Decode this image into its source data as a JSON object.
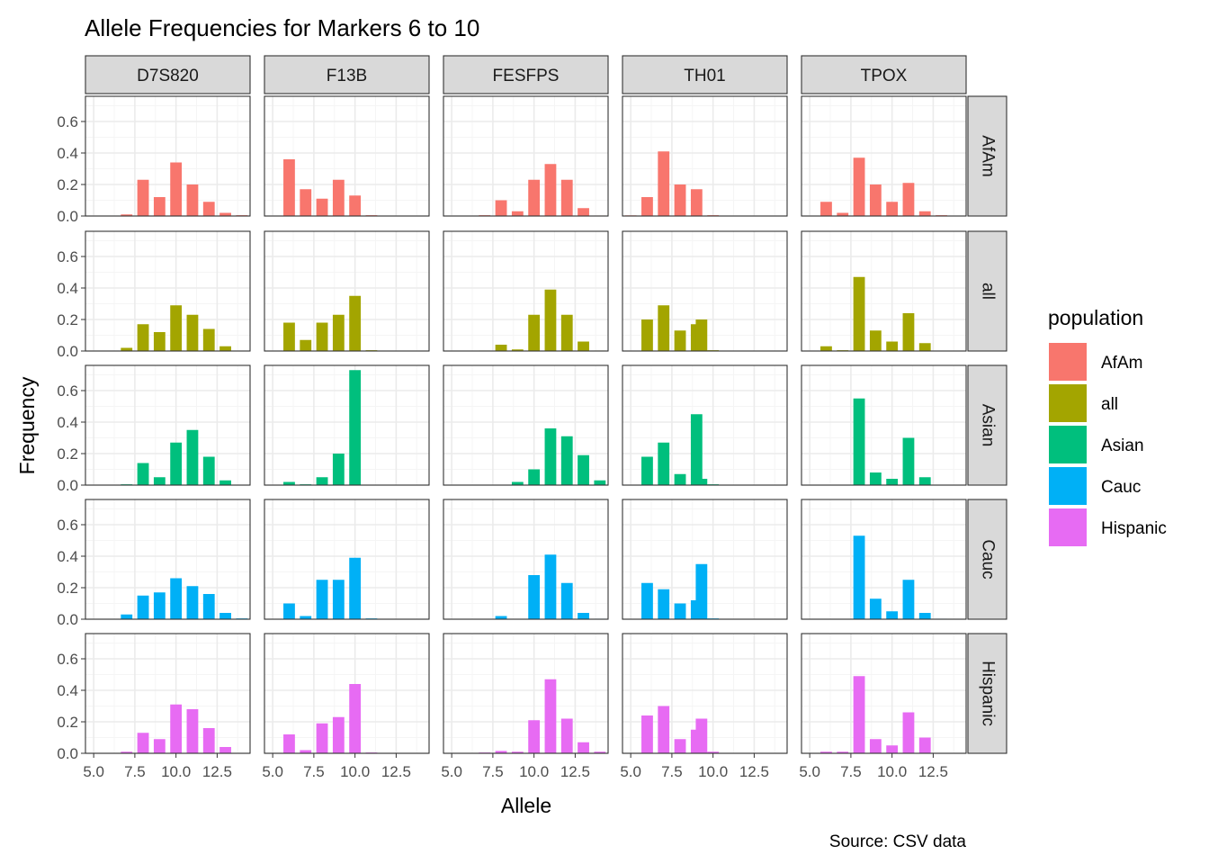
{
  "chart_data": {
    "type": "bar",
    "title": "Allele Frequencies for Markers 6 to 10",
    "xlabel": "Allele",
    "ylabel": "Frequency",
    "caption": "Source: CSV data",
    "xlim": [
      4.5,
      14.5
    ],
    "ylim": [
      0,
      0.76
    ],
    "x_ticks": [
      5.0,
      7.5,
      10.0,
      12.5
    ],
    "x_tick_labels": [
      "5.0",
      "7.5",
      "10.0",
      "12.5"
    ],
    "y_ticks": [
      0.0,
      0.2,
      0.4,
      0.6
    ],
    "y_tick_labels": [
      "0.0",
      "0.2",
      "0.4",
      "0.6"
    ],
    "grid": true,
    "markers": [
      "D7S820",
      "F13B",
      "FESFPS",
      "TH01",
      "TPOX"
    ],
    "populations": [
      "AfAm",
      "all",
      "Asian",
      "Cauc",
      "Hispanic"
    ],
    "legend": {
      "title": "population",
      "position": "right",
      "entries": [
        {
          "label": "AfAm",
          "color": "#F8766D"
        },
        {
          "label": "all",
          "color": "#A3A500"
        },
        {
          "label": "Asian",
          "color": "#00BF7D"
        },
        {
          "label": "Cauc",
          "color": "#00B0F6"
        },
        {
          "label": "Hispanic",
          "color": "#E76BF3"
        }
      ]
    },
    "panels": {
      "AfAm": {
        "D7S820": [
          [
            6,
            0.002
          ],
          [
            7,
            0.01
          ],
          [
            8,
            0.23
          ],
          [
            9,
            0.12
          ],
          [
            10,
            0.34
          ],
          [
            11,
            0.2
          ],
          [
            12,
            0.09
          ],
          [
            13,
            0.02
          ],
          [
            14,
            0.005
          ]
        ],
        "F13B": [
          [
            6,
            0.36
          ],
          [
            7,
            0.17
          ],
          [
            8,
            0.11
          ],
          [
            9,
            0.23
          ],
          [
            10,
            0.13
          ],
          [
            11,
            0.005
          ]
        ],
        "FESFPS": [
          [
            6,
            0.002
          ],
          [
            7,
            0.005
          ],
          [
            8,
            0.1
          ],
          [
            9,
            0.03
          ],
          [
            10,
            0.23
          ],
          [
            11,
            0.33
          ],
          [
            12,
            0.23
          ],
          [
            13,
            0.05
          ],
          [
            14,
            0.003
          ]
        ],
        "TH01": [
          [
            5,
            0.004
          ],
          [
            6,
            0.12
          ],
          [
            7,
            0.41
          ],
          [
            8,
            0.2
          ],
          [
            9,
            0.17
          ],
          [
            10,
            0.005
          ]
        ],
        "TPOX": [
          [
            6,
            0.09
          ],
          [
            7,
            0.02
          ],
          [
            8,
            0.37
          ],
          [
            9,
            0.2
          ],
          [
            10,
            0.09
          ],
          [
            11,
            0.21
          ],
          [
            12,
            0.03
          ],
          [
            13,
            0.005
          ]
        ]
      },
      "all": {
        "D7S820": [
          [
            7,
            0.02
          ],
          [
            8,
            0.17
          ],
          [
            9,
            0.12
          ],
          [
            10,
            0.29
          ],
          [
            11,
            0.23
          ],
          [
            12,
            0.14
          ],
          [
            13,
            0.03
          ]
        ],
        "F13B": [
          [
            6,
            0.18
          ],
          [
            7,
            0.07
          ],
          [
            8,
            0.18
          ],
          [
            9,
            0.23
          ],
          [
            10,
            0.35
          ],
          [
            11,
            0.005
          ]
        ],
        "FESFPS": [
          [
            7,
            0.003
          ],
          [
            8,
            0.04
          ],
          [
            9,
            0.01
          ],
          [
            10,
            0.23
          ],
          [
            11,
            0.39
          ],
          [
            12,
            0.23
          ],
          [
            13,
            0.06
          ],
          [
            14,
            0.003
          ]
        ],
        "TH01": [
          [
            5,
            0.002
          ],
          [
            6,
            0.2
          ],
          [
            7,
            0.29
          ],
          [
            8,
            0.13
          ],
          [
            9,
            0.17
          ],
          [
            9.3,
            0.2
          ],
          [
            10,
            0.005
          ]
        ],
        "TPOX": [
          [
            6,
            0.03
          ],
          [
            7,
            0.005
          ],
          [
            8,
            0.47
          ],
          [
            9,
            0.13
          ],
          [
            10,
            0.06
          ],
          [
            11,
            0.24
          ],
          [
            12,
            0.05
          ]
        ]
      },
      "Asian": {
        "D7S820": [
          [
            7,
            0.005
          ],
          [
            8,
            0.14
          ],
          [
            9,
            0.05
          ],
          [
            10,
            0.27
          ],
          [
            11,
            0.35
          ],
          [
            12,
            0.18
          ],
          [
            13,
            0.03
          ]
        ],
        "F13B": [
          [
            6,
            0.02
          ],
          [
            7,
            0.005
          ],
          [
            8,
            0.05
          ],
          [
            9,
            0.2
          ],
          [
            10,
            0.73
          ]
        ],
        "FESFPS": [
          [
            9,
            0.02
          ],
          [
            10,
            0.1
          ],
          [
            11,
            0.36
          ],
          [
            12,
            0.31
          ],
          [
            13,
            0.19
          ],
          [
            14,
            0.03
          ]
        ],
        "TH01": [
          [
            6,
            0.18
          ],
          [
            7,
            0.27
          ],
          [
            8,
            0.07
          ],
          [
            9,
            0.45
          ],
          [
            9.3,
            0.04
          ],
          [
            10,
            0.005
          ]
        ],
        "TPOX": [
          [
            8,
            0.55
          ],
          [
            9,
            0.08
          ],
          [
            10,
            0.04
          ],
          [
            11,
            0.3
          ],
          [
            12,
            0.05
          ]
        ]
      },
      "Cauc": {
        "D7S820": [
          [
            7,
            0.03
          ],
          [
            8,
            0.15
          ],
          [
            9,
            0.17
          ],
          [
            10,
            0.26
          ],
          [
            11,
            0.21
          ],
          [
            12,
            0.16
          ],
          [
            13,
            0.04
          ],
          [
            14,
            0.005
          ]
        ],
        "F13B": [
          [
            6,
            0.1
          ],
          [
            7,
            0.02
          ],
          [
            8,
            0.25
          ],
          [
            9,
            0.25
          ],
          [
            10,
            0.39
          ],
          [
            11,
            0.005
          ]
        ],
        "FESFPS": [
          [
            8,
            0.02
          ],
          [
            10,
            0.28
          ],
          [
            11,
            0.41
          ],
          [
            12,
            0.23
          ],
          [
            13,
            0.04
          ],
          [
            14,
            0.003
          ]
        ],
        "TH01": [
          [
            6,
            0.23
          ],
          [
            7,
            0.19
          ],
          [
            8,
            0.1
          ],
          [
            9,
            0.12
          ],
          [
            9.3,
            0.35
          ],
          [
            10,
            0.005
          ]
        ],
        "TPOX": [
          [
            8,
            0.53
          ],
          [
            9,
            0.13
          ],
          [
            10,
            0.05
          ],
          [
            11,
            0.25
          ],
          [
            12,
            0.04
          ],
          [
            13,
            0.003
          ]
        ]
      },
      "Hispanic": {
        "D7S820": [
          [
            7,
            0.01
          ],
          [
            8,
            0.13
          ],
          [
            9,
            0.09
          ],
          [
            10,
            0.31
          ],
          [
            11,
            0.28
          ],
          [
            12,
            0.16
          ],
          [
            13,
            0.04
          ]
        ],
        "F13B": [
          [
            6,
            0.12
          ],
          [
            7,
            0.02
          ],
          [
            8,
            0.19
          ],
          [
            9,
            0.23
          ],
          [
            10,
            0.44
          ],
          [
            11,
            0.005
          ]
        ],
        "FESFPS": [
          [
            7,
            0.005
          ],
          [
            8,
            0.015
          ],
          [
            9,
            0.01
          ],
          [
            10,
            0.21
          ],
          [
            11,
            0.47
          ],
          [
            12,
            0.22
          ],
          [
            13,
            0.07
          ],
          [
            14,
            0.01
          ]
        ],
        "TH01": [
          [
            6,
            0.24
          ],
          [
            7,
            0.3
          ],
          [
            8,
            0.09
          ],
          [
            9,
            0.15
          ],
          [
            9.3,
            0.22
          ],
          [
            10,
            0.01
          ]
        ],
        "TPOX": [
          [
            6,
            0.01
          ],
          [
            7,
            0.01
          ],
          [
            8,
            0.49
          ],
          [
            9,
            0.09
          ],
          [
            10,
            0.05
          ],
          [
            11,
            0.26
          ],
          [
            12,
            0.1
          ]
        ]
      }
    }
  },
  "colors": {
    "strip_bg": "#D9D9D9",
    "panel_border": "#333333",
    "grid_major": "#EBEBEB",
    "grid_minor": "#F5F5F5",
    "text": "#000000",
    "tick_text": "#4D4D4D"
  }
}
